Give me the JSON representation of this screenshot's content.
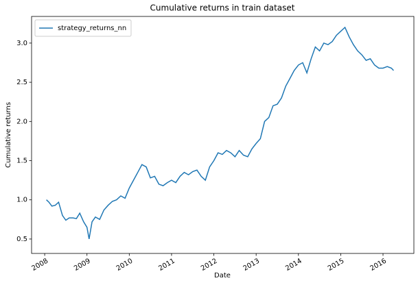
{
  "chart_data": {
    "type": "line",
    "title": "Cumulative returns in train dataset",
    "x_label": "Date",
    "y_label": "Cumulative returns",
    "x": [
      2008.04,
      2008.1,
      2008.17,
      2008.25,
      2008.33,
      2008.42,
      2008.5,
      2008.58,
      2008.67,
      2008.75,
      2008.83,
      2008.92,
      2009.0,
      2009.05,
      2009.12,
      2009.2,
      2009.3,
      2009.4,
      2009.5,
      2009.6,
      2009.7,
      2009.8,
      2009.9,
      2010.0,
      2010.1,
      2010.2,
      2010.3,
      2010.4,
      2010.5,
      2010.6,
      2010.7,
      2010.8,
      2010.9,
      2011.0,
      2011.1,
      2011.2,
      2011.3,
      2011.4,
      2011.5,
      2011.6,
      2011.7,
      2011.8,
      2011.9,
      2012.0,
      2012.1,
      2012.2,
      2012.3,
      2012.4,
      2012.5,
      2012.6,
      2012.7,
      2012.8,
      2012.9,
      2013.0,
      2013.1,
      2013.2,
      2013.3,
      2013.4,
      2013.5,
      2013.6,
      2013.7,
      2013.8,
      2013.9,
      2014.0,
      2014.1,
      2014.2,
      2014.3,
      2014.4,
      2014.5,
      2014.6,
      2014.7,
      2014.8,
      2014.9,
      2015.0,
      2015.1,
      2015.2,
      2015.3,
      2015.4,
      2015.5,
      2015.6,
      2015.7,
      2015.8,
      2015.9,
      2016.0,
      2016.1,
      2016.2,
      2016.25
    ],
    "series": [
      {
        "name": "strategy_returns_nn",
        "color": "#1f77b4",
        "values": [
          1.0,
          0.97,
          0.92,
          0.93,
          0.97,
          0.8,
          0.74,
          0.77,
          0.77,
          0.76,
          0.83,
          0.72,
          0.65,
          0.5,
          0.72,
          0.78,
          0.75,
          0.87,
          0.93,
          0.98,
          1.0,
          1.05,
          1.02,
          1.15,
          1.25,
          1.35,
          1.45,
          1.42,
          1.28,
          1.3,
          1.2,
          1.18,
          1.22,
          1.25,
          1.22,
          1.3,
          1.35,
          1.32,
          1.36,
          1.38,
          1.3,
          1.25,
          1.42,
          1.5,
          1.6,
          1.58,
          1.63,
          1.6,
          1.55,
          1.63,
          1.57,
          1.55,
          1.65,
          1.72,
          1.78,
          2.0,
          2.05,
          2.2,
          2.22,
          2.3,
          2.45,
          2.55,
          2.65,
          2.72,
          2.75,
          2.62,
          2.8,
          2.95,
          2.9,
          3.0,
          2.98,
          3.02,
          3.1,
          3.15,
          3.2,
          3.08,
          2.98,
          2.9,
          2.85,
          2.78,
          2.8,
          2.72,
          2.68,
          2.68,
          2.7,
          2.68,
          2.65
        ]
      }
    ],
    "xlim": [
      2007.69,
      2016.73
    ],
    "xticks": [
      2008,
      2009,
      2010,
      2011,
      2012,
      2013,
      2014,
      2015,
      2016
    ],
    "ylim": [
      0.316,
      3.34
    ],
    "yticks": [
      0.5,
      {
        "value": 1.0,
        "label": "1.0"
      },
      1.5,
      {
        "value": 2.0,
        "label": "2.0"
      },
      2.5,
      {
        "value": 3.0,
        "label": "3.0"
      }
    ],
    "grid": false,
    "legend": "upper left"
  }
}
